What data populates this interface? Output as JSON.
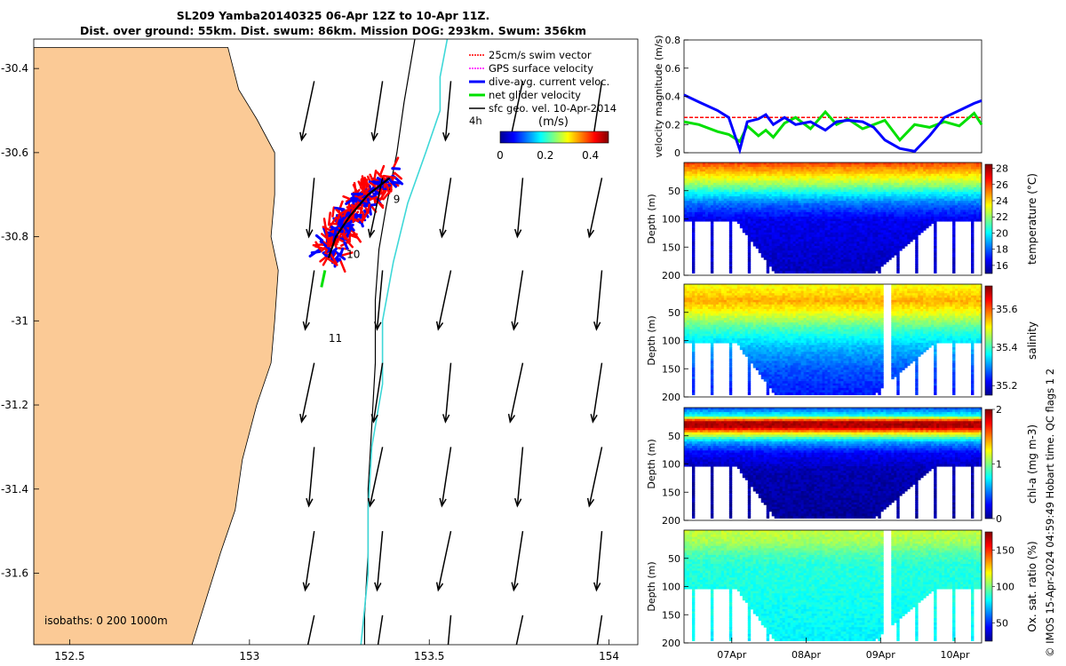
{
  "title": {
    "line1": "SL209 Yamba20140325 06-Apr 12Z to 10-Apr 11Z.",
    "line2": "Dist. over ground: 55km. Dist. swum: 86km. Mission DOG: 293km. Swum: 356km"
  },
  "side_note": "© IMOS 15-Apr-2024 04:59:49 Hobart time. QC flags 1  2",
  "colors": {
    "land": "#fbca96",
    "isobath": "#3ed8d8",
    "swim": "#ff0000",
    "gps": "#ff00ff",
    "dive": "#0000ff",
    "net": "#00e000",
    "sfc": "#000000"
  },
  "chart_data": [
    {
      "type": "map",
      "name": "track-map",
      "x_ticks": [
        "152.5",
        "153",
        "153.5",
        "154"
      ],
      "y_ticks": [
        "-30.4",
        "-30.6",
        "-30.8",
        "-31",
        "-31.2",
        "-31.4",
        "-31.6"
      ],
      "xlim": [
        152.4,
        154.08
      ],
      "ylim": [
        -31.77,
        -30.33
      ],
      "legend": {
        "placement": "top-right",
        "entries": [
          "25cm/s swim vector",
          "GPS surface velocity",
          "dive-avg. current veloc.",
          "net glider velocity",
          "sfc geo. vel. 10-Apr-2014"
        ]
      },
      "scale_label": "4h",
      "colorbar": {
        "label": "(m/s)",
        "ticks": [
          "0",
          "0.2",
          "0.4"
        ],
        "range": [
          0,
          0.48
        ]
      },
      "isobath_label": "isobaths: 0   200  1000m",
      "day_labels": [
        {
          "text": "9",
          "lon": 153.4,
          "lat": -30.72
        },
        {
          "text": "10",
          "lon": 153.27,
          "lat": -30.85
        },
        {
          "text": "11",
          "lon": 153.22,
          "lat": -31.05
        }
      ],
      "isobath_200m": [
        [
          153.46,
          -30.33
        ],
        [
          153.43,
          -30.48
        ],
        [
          153.41,
          -30.6
        ],
        [
          153.38,
          -30.73
        ],
        [
          153.36,
          -30.83
        ],
        [
          153.35,
          -30.95
        ],
        [
          153.35,
          -31.1
        ],
        [
          153.34,
          -31.25
        ],
        [
          153.33,
          -31.4
        ],
        [
          153.33,
          -31.55
        ],
        [
          153.32,
          -31.7
        ],
        [
          153.32,
          -31.77
        ]
      ],
      "isobath_1000m": [
        [
          153.55,
          -30.33
        ],
        [
          153.53,
          -30.42
        ],
        [
          153.53,
          -30.5
        ],
        [
          153.49,
          -30.6
        ],
        [
          153.44,
          -30.72
        ],
        [
          153.4,
          -30.86
        ],
        [
          153.37,
          -31
        ],
        [
          153.37,
          -31.15
        ],
        [
          153.34,
          -31.3
        ],
        [
          153.33,
          -31.45
        ],
        [
          153.33,
          -31.6
        ],
        [
          153.31,
          -31.77
        ]
      ],
      "coastline": [
        [
          152.4,
          -30.35
        ],
        [
          152.94,
          -30.35
        ],
        [
          152.97,
          -30.45
        ],
        [
          153.02,
          -30.52
        ],
        [
          153.07,
          -30.6
        ],
        [
          153.07,
          -30.7
        ],
        [
          153.06,
          -30.8
        ],
        [
          153.08,
          -30.88
        ],
        [
          153.07,
          -31
        ],
        [
          153.06,
          -31.1
        ],
        [
          153.02,
          -31.2
        ],
        [
          152.98,
          -31.33
        ],
        [
          152.96,
          -31.45
        ],
        [
          152.92,
          -31.55
        ],
        [
          152.88,
          -31.66
        ],
        [
          152.84,
          -31.77
        ],
        [
          152.4,
          -31.77
        ]
      ],
      "vector_grid": {
        "lons": [
          153.18,
          153.37,
          153.56,
          153.76,
          153.98
        ],
        "lats": [
          -30.43,
          -30.66,
          -30.88,
          -31.1,
          -31.3,
          -31.5,
          -31.7
        ],
        "u": -0.025,
        "v": -0.14
      }
    },
    {
      "type": "line",
      "name": "velocity-panel",
      "ylabel": "velocity magnitude (m/s)",
      "ylim": [
        0,
        0.8
      ],
      "y_ticks": [
        "0",
        "0.2",
        "0.4",
        "0.6",
        "0.8"
      ],
      "x": [
        0,
        0.2,
        0.45,
        0.6,
        0.75,
        0.85,
        1.0,
        1.1,
        1.2,
        1.35,
        1.5,
        1.7,
        1.9,
        2.05,
        2.2,
        2.4,
        2.55,
        2.7,
        2.9,
        3.1,
        3.3,
        3.5,
        3.7,
        3.9,
        4.0
      ],
      "series": [
        {
          "values": [
            0.25,
            0.25,
            0.25,
            0.25,
            0.25,
            0.25,
            0.25,
            0.25,
            0.25,
            0.25,
            0.25,
            0.25,
            0.25,
            0.25,
            0.25,
            0.25,
            0.25,
            0.25,
            0.25,
            0.25,
            0.25,
            0.25,
            0.25,
            0.25,
            0.25
          ]
        },
        {
          "values": [
            0.22,
            0.2,
            0.15,
            0.13,
            0.08,
            0.19,
            0.12,
            0.16,
            0.11,
            0.21,
            0.25,
            0.17,
            0.29,
            0.2,
            0.24,
            0.17,
            0.2,
            0.23,
            0.09,
            0.2,
            0.18,
            0.22,
            0.19,
            0.28,
            0.2
          ]
        },
        {
          "values": [
            0.41,
            0.36,
            0.3,
            0.25,
            0.02,
            0.22,
            0.24,
            0.27,
            0.2,
            0.25,
            0.2,
            0.22,
            0.16,
            0.22,
            0.23,
            0.22,
            0.18,
            0.09,
            0.03,
            0.01,
            0.12,
            0.25,
            0.3,
            0.35,
            0.37
          ]
        }
      ]
    },
    {
      "type": "heatmap",
      "name": "temperature-panel",
      "ylabel": "Depth (m)",
      "colorbar_label": "temperature (°C)",
      "colorbar_ticks": [
        "16",
        "18",
        "20",
        "22",
        "24",
        "26",
        "28"
      ],
      "cmin": 15,
      "cmax": 28.5,
      "ylim": [
        200,
        0
      ],
      "y_ticks": [
        "50",
        "100",
        "150",
        "200"
      ],
      "profile": [
        [
          0,
          26
        ],
        [
          25,
          23.5
        ],
        [
          40,
          22
        ],
        [
          55,
          20
        ],
        [
          75,
          18
        ],
        [
          100,
          16.5
        ],
        [
          200,
          15.8
        ]
      ]
    },
    {
      "type": "heatmap",
      "name": "salinity-panel",
      "ylabel": "Depth (m)",
      "colorbar_label": "salinity",
      "colorbar_ticks": [
        "35.2",
        "35.4",
        "35.6"
      ],
      "cmin": 35.15,
      "cmax": 35.72,
      "ylim": [
        200,
        0
      ],
      "y_ticks": [
        "50",
        "100",
        "150",
        "200"
      ],
      "profile": [
        [
          0,
          35.5
        ],
        [
          30,
          35.55
        ],
        [
          50,
          35.5
        ],
        [
          80,
          35.4
        ],
        [
          110,
          35.33
        ],
        [
          150,
          35.27
        ],
        [
          200,
          35.23
        ]
      ]
    },
    {
      "type": "heatmap",
      "name": "chla-panel",
      "ylabel": "Depth (m)",
      "colorbar_label": "chl-a (mg m-3)",
      "colorbar_ticks": [
        "0",
        "1",
        "2"
      ],
      "cmin": 0,
      "cmax": 2,
      "ylim": [
        200,
        0
      ],
      "y_ticks": [
        "50",
        "100",
        "150",
        "200"
      ],
      "profile": [
        [
          0,
          0.4
        ],
        [
          15,
          0.8
        ],
        [
          25,
          1.9
        ],
        [
          35,
          1.9
        ],
        [
          45,
          1.3
        ],
        [
          60,
          0.6
        ],
        [
          80,
          0.25
        ],
        [
          110,
          0.1
        ],
        [
          200,
          0.05
        ]
      ]
    },
    {
      "type": "heatmap",
      "name": "oxygen-panel",
      "ylabel": "Depth (m)",
      "colorbar_label": "Ox. sat. ratio (%)",
      "colorbar_ticks": [
        "50",
        "100",
        "150"
      ],
      "cmin": 25,
      "cmax": 175,
      "ylim": [
        200,
        0
      ],
      "y_ticks": [
        "50",
        "100",
        "150",
        "200"
      ],
      "profile": [
        [
          0,
          110
        ],
        [
          20,
          106
        ],
        [
          40,
          94
        ],
        [
          60,
          87
        ],
        [
          100,
          85
        ],
        [
          200,
          80
        ]
      ]
    }
  ],
  "time_axis": {
    "ticks": [
      "07Apr",
      "08Apr",
      "09Apr",
      "10Apr"
    ],
    "range_days": [
      0,
      4
    ]
  }
}
